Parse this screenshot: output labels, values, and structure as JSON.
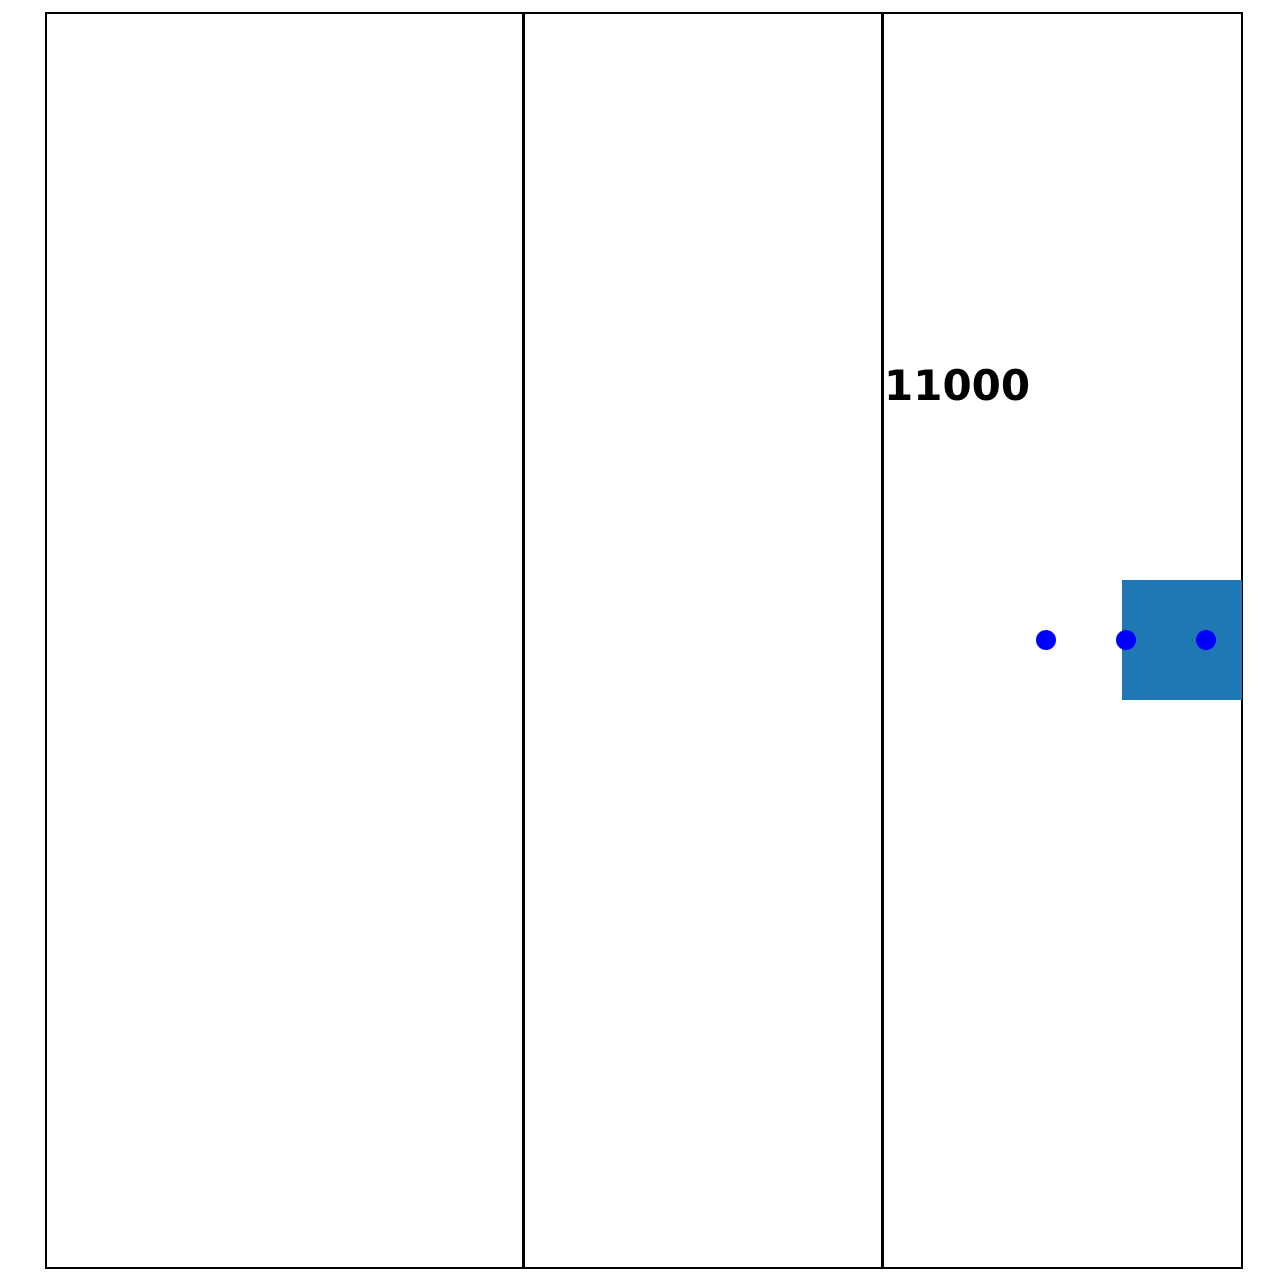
{
  "label": {
    "value": "11000"
  },
  "colors": {
    "frame": "#000000",
    "block": "#1f77b4",
    "dots": "#0000ff",
    "background": "#ffffff"
  },
  "dots": {
    "count": 3
  }
}
